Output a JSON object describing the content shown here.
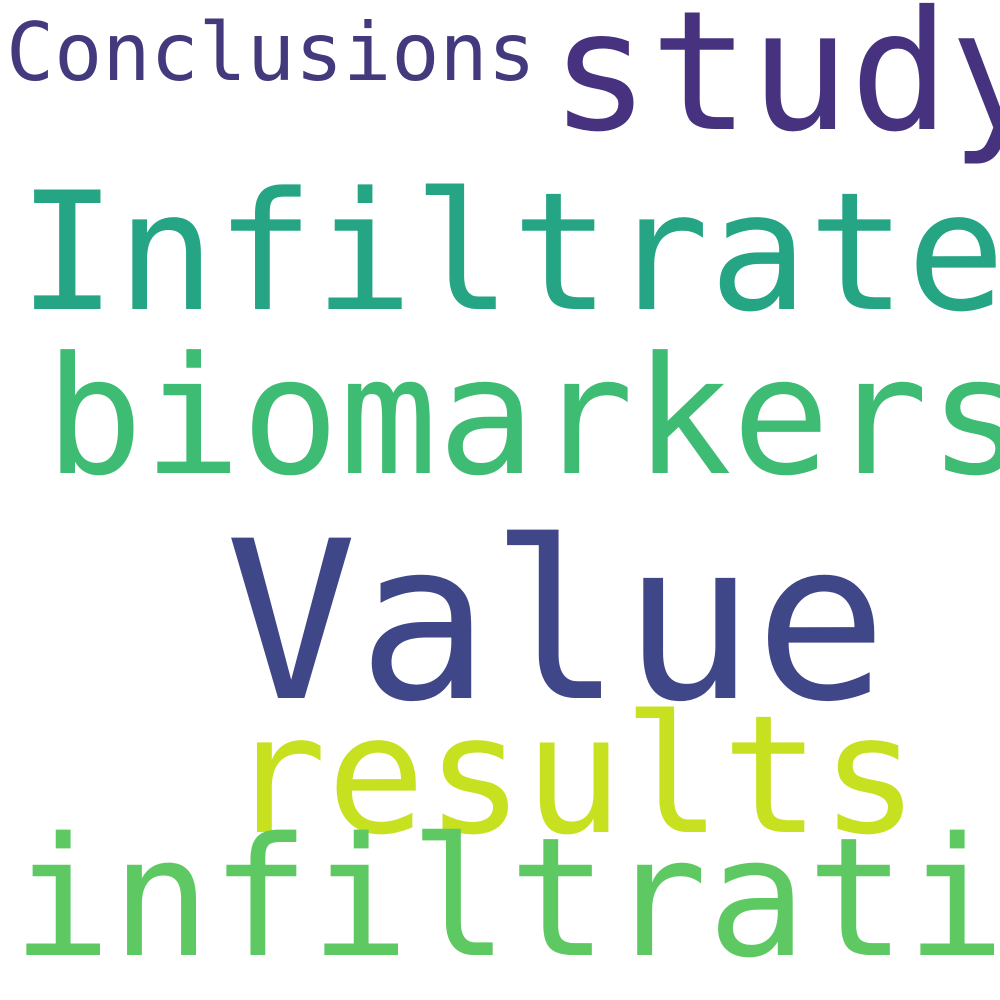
{
  "words": {
    "conclusions": {
      "text": "Conclusions",
      "color": "#433a7d"
    },
    "study": {
      "text": "study",
      "color": "#46327e"
    },
    "infiltrates": {
      "text": "Infiltrates",
      "color": "#25a584"
    },
    "biomarkers": {
      "text": "biomarkers",
      "color": "#3fbc73"
    },
    "value": {
      "text": "Value",
      "color": "#404788"
    },
    "results": {
      "text": "results",
      "color": "#c7e020"
    },
    "infiltration": {
      "text": "infiltration",
      "color": "#5ec962"
    }
  }
}
